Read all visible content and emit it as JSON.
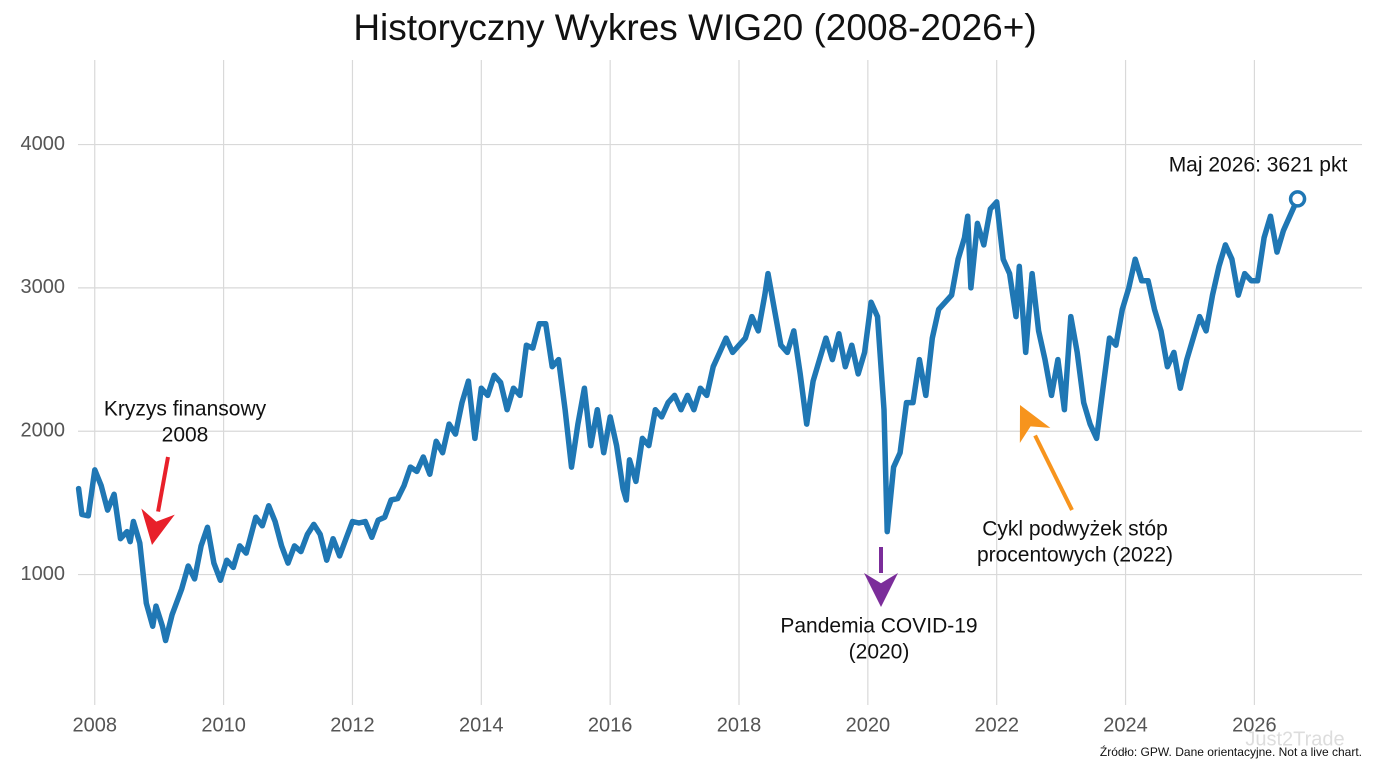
{
  "chart_data": {
    "type": "line",
    "title": "Historyczny Wykres WIG20 (2008-2026+)",
    "x": [
      2007.75,
      2007.8,
      2007.9,
      2008.0,
      2008.1,
      2008.2,
      2008.3,
      2008.4,
      2008.5,
      2008.55,
      2008.6,
      2008.7,
      2008.8,
      2008.9,
      2008.95,
      2009.05,
      2009.1,
      2009.2,
      2009.35,
      2009.45,
      2009.55,
      2009.65,
      2009.75,
      2009.85,
      2009.95,
      2010.05,
      2010.15,
      2010.25,
      2010.35,
      2010.5,
      2010.6,
      2010.7,
      2010.8,
      2010.9,
      2011.0,
      2011.1,
      2011.2,
      2011.3,
      2011.4,
      2011.5,
      2011.6,
      2011.7,
      2011.8,
      2011.9,
      2012.0,
      2012.1,
      2012.2,
      2012.3,
      2012.4,
      2012.5,
      2012.6,
      2012.7,
      2012.8,
      2012.9,
      2013.0,
      2013.1,
      2013.2,
      2013.3,
      2013.4,
      2013.5,
      2013.6,
      2013.7,
      2013.8,
      2013.9,
      2014.0,
      2014.1,
      2014.2,
      2014.3,
      2014.4,
      2014.5,
      2014.6,
      2014.7,
      2014.8,
      2014.9,
      2015.0,
      2015.1,
      2015.2,
      2015.3,
      2015.4,
      2015.5,
      2015.6,
      2015.7,
      2015.8,
      2015.9,
      2016.0,
      2016.1,
      2016.2,
      2016.25,
      2016.3,
      2016.4,
      2016.5,
      2016.6,
      2016.7,
      2016.8,
      2016.9,
      2017.0,
      2017.1,
      2017.2,
      2017.3,
      2017.4,
      2017.5,
      2017.6,
      2017.7,
      2017.8,
      2017.9,
      2018.0,
      2018.1,
      2018.2,
      2018.3,
      2018.4,
      2018.45,
      2018.55,
      2018.65,
      2018.75,
      2018.85,
      2018.95,
      2019.05,
      2019.15,
      2019.25,
      2019.35,
      2019.45,
      2019.55,
      2019.65,
      2019.75,
      2019.85,
      2019.95,
      2020.05,
      2020.15,
      2020.25,
      2020.3,
      2020.4,
      2020.5,
      2020.6,
      2020.7,
      2020.8,
      2020.9,
      2021.0,
      2021.1,
      2021.2,
      2021.3,
      2021.4,
      2021.5,
      2021.55,
      2021.6,
      2021.7,
      2021.8,
      2021.9,
      2022.0,
      2022.1,
      2022.2,
      2022.3,
      2022.35,
      2022.45,
      2022.55,
      2022.65,
      2022.75,
      2022.85,
      2022.95,
      2023.05,
      2023.15,
      2023.25,
      2023.35,
      2023.45,
      2023.55,
      2023.65,
      2023.75,
      2023.85,
      2023.95,
      2024.05,
      2024.15,
      2024.25,
      2024.35,
      2024.45,
      2024.55,
      2024.65,
      2024.75,
      2024.85,
      2024.95,
      2025.05,
      2025.15,
      2025.25,
      2025.35,
      2025.45,
      2025.55,
      2025.65,
      2025.75,
      2025.85,
      2025.95,
      2026.05,
      2026.15,
      2026.25,
      2026.35,
      2026.45,
      2026.55,
      2026.67
    ],
    "series": [
      {
        "color": "#1f77b4",
        "values": [
          1600,
          1420,
          1410,
          1730,
          1620,
          1450,
          1560,
          1250,
          1300,
          1230,
          1370,
          1220,
          800,
          640,
          780,
          640,
          540,
          720,
          900,
          1060,
          970,
          1200,
          1330,
          1080,
          960,
          1100,
          1050,
          1200,
          1150,
          1400,
          1340,
          1480,
          1370,
          1200,
          1080,
          1200,
          1160,
          1280,
          1350,
          1280,
          1100,
          1250,
          1130,
          1250,
          1370,
          1360,
          1370,
          1260,
          1380,
          1400,
          1520,
          1530,
          1620,
          1750,
          1720,
          1820,
          1700,
          1930,
          1850,
          2050,
          1980,
          2200,
          2350,
          1950,
          2300,
          2250,
          2390,
          2340,
          2150,
          2300,
          2250,
          2600,
          2580,
          2750,
          2750,
          2450,
          2500,
          2150,
          1750,
          2050,
          2300,
          1900,
          2150,
          1850,
          2100,
          1900,
          1600,
          1520,
          1800,
          1650,
          1950,
          1900,
          2150,
          2100,
          2200,
          2250,
          2150,
          2250,
          2150,
          2300,
          2250,
          2450,
          2550,
          2650,
          2550,
          2600,
          2650,
          2800,
          2700,
          2950,
          3100,
          2850,
          2600,
          2550,
          2700,
          2400,
          2050,
          2350,
          2500,
          2650,
          2500,
          2680,
          2450,
          2600,
          2400,
          2550,
          2900,
          2800,
          2150,
          1300,
          1750,
          1850,
          2200,
          2200,
          2500,
          2250,
          2650,
          2850,
          2900,
          2950,
          3200,
          3350,
          3500,
          3000,
          3450,
          3300,
          3550,
          3600,
          3200,
          3100,
          2800,
          3150,
          2550,
          3100,
          2700,
          2500,
          2250,
          2500,
          2150,
          2800,
          2550,
          2200,
          2050,
          1950,
          2300,
          2650,
          2600,
          2850,
          3000,
          3200,
          3050,
          3050,
          2850,
          2700,
          2450,
          2550,
          2300,
          2500,
          2650,
          2800,
          2700,
          2950,
          3150,
          3300,
          3200,
          2950,
          3100,
          3050,
          3050,
          3350,
          3500,
          3250,
          3400,
          3500,
          3621
        ]
      }
    ],
    "xlim": [
      2007.74,
      2027.67
    ],
    "ylim": [
      90,
      4590
    ],
    "xticks": [
      2008,
      2010,
      2012,
      2014,
      2016,
      2018,
      2020,
      2022,
      2024,
      2026
    ],
    "yticks": [
      1000,
      2000,
      3000,
      4000
    ],
    "grid": true,
    "annotations": [
      {
        "text": [
          "Kryzys finansowy",
          "2008"
        ],
        "color": "#e8202a"
      },
      {
        "text": [
          "Pandemia COVID-19",
          "(2020)"
        ],
        "color": "#7b2d9a"
      },
      {
        "text": [
          "Cykl podwyżek stóp",
          "procentowych (2022)"
        ],
        "color": "#f7941d"
      }
    ],
    "end_label": "Maj 2026: 3621 pkt",
    "source": "Źródło: GPW. Dane orientacyjne. Not a live chart.",
    "watermark": "Just2Trade"
  }
}
